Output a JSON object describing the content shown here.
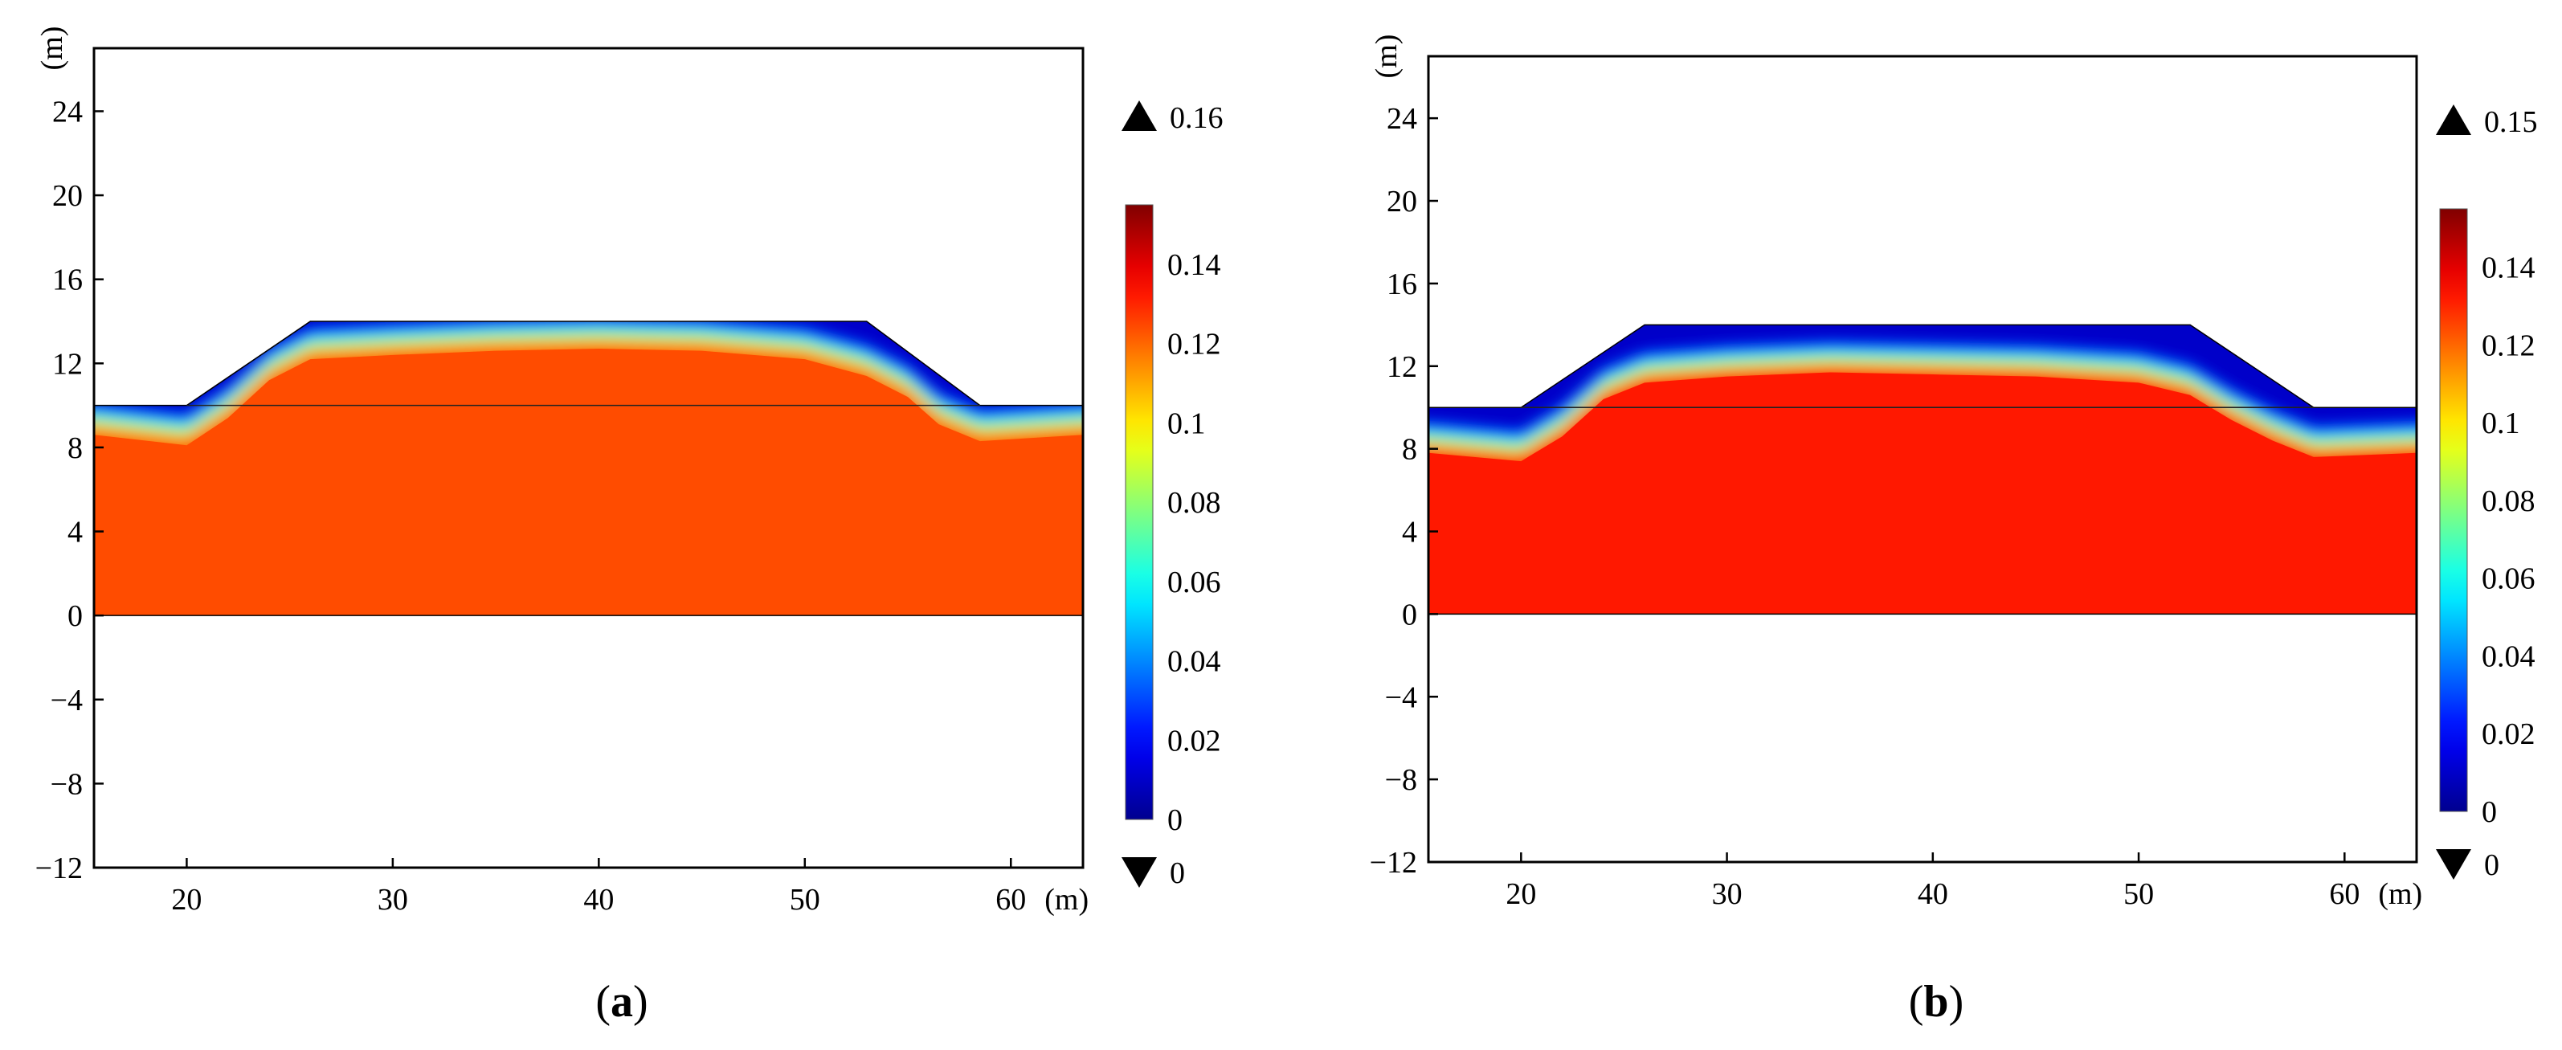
{
  "chart_data": [
    {
      "type": "heatmap",
      "panel_label": "a",
      "xunit": "(m)",
      "yunit": "(m)",
      "xlim": [
        15.5,
        63.5
      ],
      "ylim": [
        -12,
        27
      ],
      "xticks": [
        20,
        30,
        40,
        50,
        60
      ],
      "yticks": [
        24,
        20,
        16,
        12,
        8,
        4,
        0,
        -4,
        -8,
        -12
      ],
      "embankment_profile": [
        [
          15.5,
          10
        ],
        [
          20,
          10
        ],
        [
          26,
          14
        ],
        [
          53,
          14
        ],
        [
          58.5,
          10
        ],
        [
          63.5,
          10
        ]
      ],
      "water_level": 10,
      "domain_bottom": 0,
      "saturated_value": 0.124,
      "wetting_front": [
        [
          15.5,
          8.8
        ],
        [
          20,
          8.3
        ],
        [
          22,
          9.6
        ],
        [
          24,
          11.4
        ],
        [
          26,
          12.4
        ],
        [
          30,
          12.6
        ],
        [
          35,
          12.8
        ],
        [
          40,
          12.9
        ],
        [
          45,
          12.8
        ],
        [
          50,
          12.4
        ],
        [
          53,
          11.6
        ],
        [
          55,
          10.6
        ],
        [
          56.5,
          9.3
        ],
        [
          58.5,
          8.5
        ],
        [
          63.5,
          8.8
        ]
      ],
      "colorbar": {
        "min": 0,
        "max": 0.155,
        "ticks": [
          0.14,
          0.12,
          0.1,
          0.08,
          0.06,
          0.04,
          0.02,
          0
        ],
        "tick_labels": [
          "0.14",
          "0.12",
          "0.1",
          "0.08",
          "0.06",
          "0.04",
          "0.02",
          "0"
        ],
        "max_label": "0.16",
        "min_label": "0"
      }
    },
    {
      "type": "heatmap",
      "panel_label": "b",
      "xunit": "(m)",
      "yunit": "(m)",
      "xlim": [
        15.5,
        63.5
      ],
      "ylim": [
        -12,
        27
      ],
      "xticks": [
        20,
        30,
        40,
        50,
        60
      ],
      "yticks": [
        24,
        20,
        16,
        12,
        8,
        4,
        0,
        -4,
        -8,
        -12
      ],
      "embankment_profile": [
        [
          15.5,
          10
        ],
        [
          20,
          10
        ],
        [
          26,
          14
        ],
        [
          52.5,
          14
        ],
        [
          58.5,
          10
        ],
        [
          63.5,
          10
        ]
      ],
      "water_level": 10,
      "domain_bottom": 0,
      "saturated_value": 0.132,
      "wetting_front": [
        [
          15.5,
          8.0
        ],
        [
          20,
          7.6
        ],
        [
          22,
          8.8
        ],
        [
          24,
          10.6
        ],
        [
          26,
          11.4
        ],
        [
          30,
          11.7
        ],
        [
          35,
          11.9
        ],
        [
          40,
          11.8
        ],
        [
          45,
          11.7
        ],
        [
          50,
          11.4
        ],
        [
          52.5,
          10.8
        ],
        [
          54.5,
          9.6
        ],
        [
          56.5,
          8.6
        ],
        [
          58.5,
          7.8
        ],
        [
          63.5,
          8.0
        ]
      ],
      "colorbar": {
        "min": 0,
        "max": 0.155,
        "ticks": [
          0.14,
          0.12,
          0.1,
          0.08,
          0.06,
          0.04,
          0.02,
          0
        ],
        "tick_labels": [
          "0.14",
          "0.12",
          "0.1",
          "0.08",
          "0.06",
          "0.04",
          "0.02",
          "0"
        ],
        "max_label": "0.15",
        "min_label": "0"
      }
    }
  ]
}
